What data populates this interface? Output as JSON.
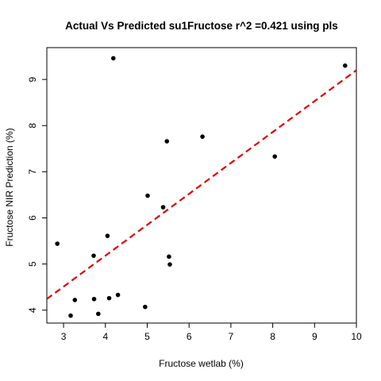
{
  "chart_data": {
    "type": "scatter",
    "title": "Actual Vs Predicted su1Fructose r^2 =0.421 using pls",
    "xlabel": "Fructose wetlab (%)",
    "ylabel": "Fructose NIR Prediction (%)",
    "xlim": [
      2.6,
      10.0
    ],
    "ylim": [
      3.72,
      9.69
    ],
    "xticks": [
      3,
      4,
      5,
      6,
      7,
      8,
      9,
      10
    ],
    "yticks": [
      4,
      5,
      6,
      7,
      8,
      9
    ],
    "grid": false,
    "legend": "none",
    "point_color": "#000000",
    "points": [
      {
        "x": 2.85,
        "y": 5.44
      },
      {
        "x": 3.17,
        "y": 3.88
      },
      {
        "x": 3.27,
        "y": 4.22
      },
      {
        "x": 3.72,
        "y": 5.18
      },
      {
        "x": 3.73,
        "y": 4.24
      },
      {
        "x": 3.83,
        "y": 3.92
      },
      {
        "x": 4.05,
        "y": 5.61
      },
      {
        "x": 4.09,
        "y": 4.26
      },
      {
        "x": 4.19,
        "y": 9.46
      },
      {
        "x": 4.3,
        "y": 4.33
      },
      {
        "x": 4.95,
        "y": 4.07
      },
      {
        "x": 5.01,
        "y": 6.48
      },
      {
        "x": 5.38,
        "y": 6.23
      },
      {
        "x": 5.47,
        "y": 7.66
      },
      {
        "x": 5.52,
        "y": 5.16
      },
      {
        "x": 5.54,
        "y": 4.99
      },
      {
        "x": 6.32,
        "y": 7.76
      },
      {
        "x": 8.05,
        "y": 7.33
      },
      {
        "x": 9.73,
        "y": 9.3
      }
    ],
    "fit_line": {
      "style": "dashed",
      "color": "#dd0000",
      "intercept": 2.5,
      "slope": 0.67
    }
  }
}
